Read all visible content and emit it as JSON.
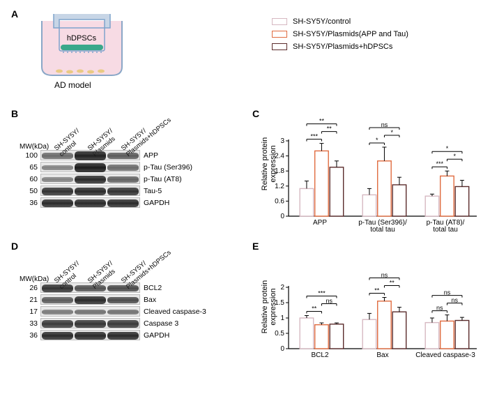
{
  "panelA": {
    "label": "A",
    "cell_label": "hDPSCs",
    "caption": "AD model",
    "colors": {
      "well_outline": "#8aa7c7",
      "well_body": "#c7d5e6",
      "media": "#f7dbe4",
      "insert_outline": "#7fa3cc",
      "hdpscs_fill": "#3aa88a",
      "cells_bottom": "#e6c66c"
    }
  },
  "legend": {
    "items": [
      {
        "swatch_border": "#d6b8c1",
        "swatch_fill": "#ffffff",
        "label": "SH-SY5Y/control"
      },
      {
        "swatch_border": "#e06b3f",
        "swatch_fill": "#ffffff",
        "label": "SH-SY5Y/Plasmids(APP and Tau)"
      },
      {
        "swatch_border": "#5b2c2c",
        "swatch_fill": "#ffffff",
        "label": "SH-SY5Y/Plasmids+hDPSCs"
      }
    ]
  },
  "panelB": {
    "label": "B",
    "mw_header": "MW(kDa)",
    "lanes": [
      "SH-SY5Y/\ncontrol",
      "SH-SY5Y/\nPlasmids",
      "SH-SY5Y/\nPlasmids+hDPSCs"
    ],
    "rows": [
      {
        "mw": "100",
        "protein": "APP",
        "intensities": [
          0.45,
          0.9,
          0.55
        ]
      },
      {
        "mw": "65",
        "protein": "p-Tau (Ser396)",
        "intensities": [
          0.3,
          0.95,
          0.45
        ]
      },
      {
        "mw": "60",
        "protein": "p-Tau (AT8)",
        "intensities": [
          0.3,
          0.85,
          0.5
        ]
      },
      {
        "mw": "50",
        "protein": "Tau-5",
        "intensities": [
          0.8,
          0.85,
          0.8
        ]
      },
      {
        "mw": "36",
        "protein": "GAPDH",
        "intensities": [
          0.85,
          0.85,
          0.85
        ]
      }
    ]
  },
  "panelD": {
    "label": "D",
    "mw_header": "MW(kDa)",
    "lanes": [
      "SH-SY5Y/\ncontrol",
      "SH-SY5Y/\nPlasmids",
      "SH-SY5Y/\nPlasmids+hDPSCs"
    ],
    "rows": [
      {
        "mw": "26",
        "protein": "BCL2",
        "intensities": [
          0.8,
          0.6,
          0.65
        ]
      },
      {
        "mw": "21",
        "protein": "Bax",
        "intensities": [
          0.55,
          0.85,
          0.65
        ]
      },
      {
        "mw": "17",
        "protein": "Cleaved caspase-3",
        "intensities": [
          0.35,
          0.4,
          0.4
        ]
      },
      {
        "mw": "33",
        "protein": "Caspase 3",
        "intensities": [
          0.75,
          0.78,
          0.75
        ]
      },
      {
        "mw": "36",
        "protein": "GAPDH",
        "intensities": [
          0.85,
          0.85,
          0.85
        ]
      }
    ]
  },
  "panelC": {
    "label": "C",
    "type": "bar",
    "ylabel": "Relative protein\nexpression",
    "ylim": [
      0,
      3
    ],
    "ytick_step": 0.6,
    "groups": [
      "APP",
      "p-Tau (Ser396)/\ntotal tau",
      "p-Tau (AT8)/\ntotal tau"
    ],
    "series": [
      {
        "color": "#d6b8c1",
        "values": [
          1.1,
          0.85,
          0.8
        ],
        "err": [
          0.3,
          0.25,
          0.08
        ]
      },
      {
        "color": "#e06b3f",
        "values": [
          2.6,
          2.2,
          1.6
        ],
        "err": [
          0.3,
          0.55,
          0.2
        ]
      },
      {
        "color": "#5b2c2c",
        "values": [
          1.95,
          1.25,
          1.18
        ],
        "err": [
          0.25,
          0.3,
          0.25
        ]
      }
    ],
    "sig": [
      {
        "group": 0,
        "pairs": [
          [
            0,
            1,
            "***"
          ],
          [
            1,
            2,
            "**"
          ],
          [
            0,
            2,
            "**"
          ]
        ]
      },
      {
        "group": 1,
        "pairs": [
          [
            0,
            1,
            "*"
          ],
          [
            1,
            2,
            "*"
          ],
          [
            0,
            2,
            "ns"
          ]
        ]
      },
      {
        "group": 2,
        "pairs": [
          [
            0,
            1,
            "***"
          ],
          [
            1,
            2,
            "*"
          ],
          [
            0,
            2,
            "*"
          ]
        ]
      }
    ],
    "bar_width": 0.7,
    "background_color": "#ffffff",
    "axis_color": "#000000",
    "label_fontsize": 10
  },
  "panelE": {
    "label": "E",
    "type": "bar",
    "ylabel": "Relative protein\nexpression",
    "ylim": [
      0,
      2
    ],
    "ytick_step": 0.5,
    "groups": [
      "BCL2",
      "Bax",
      "Cleaved caspase-3"
    ],
    "series": [
      {
        "color": "#d6b8c1",
        "values": [
          1.0,
          0.95,
          0.85
        ],
        "err": [
          0.08,
          0.2,
          0.15
        ]
      },
      {
        "color": "#e06b3f",
        "values": [
          0.78,
          1.55,
          0.9
        ],
        "err": [
          0.06,
          0.12,
          0.2
        ]
      },
      {
        "color": "#5b2c2c",
        "values": [
          0.8,
          1.2,
          0.92
        ],
        "err": [
          0.04,
          0.15,
          0.1
        ]
      }
    ],
    "sig": [
      {
        "group": 0,
        "pairs": [
          [
            0,
            1,
            "**"
          ],
          [
            1,
            2,
            "ns"
          ],
          [
            0,
            2,
            "***"
          ]
        ]
      },
      {
        "group": 1,
        "pairs": [
          [
            0,
            1,
            "**"
          ],
          [
            1,
            2,
            "**"
          ],
          [
            0,
            2,
            "ns"
          ]
        ]
      },
      {
        "group": 2,
        "pairs": [
          [
            0,
            1,
            "ns"
          ],
          [
            1,
            2,
            "ns"
          ],
          [
            0,
            2,
            "ns"
          ]
        ]
      }
    ],
    "bar_width": 0.7,
    "background_color": "#ffffff",
    "axis_color": "#000000",
    "label_fontsize": 10
  }
}
